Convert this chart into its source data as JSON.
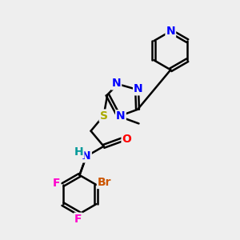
{
  "background_color": "#eeeeee",
  "bond_color": "#000000",
  "bond_width": 1.8,
  "atom_colors": {
    "N": "#0000ff",
    "S": "#aaaa00",
    "O": "#ff0000",
    "F": "#ff00cc",
    "Br": "#cc5500",
    "H": "#009999",
    "C": "#000000"
  },
  "font_size": 10,
  "font_size_methyl": 8
}
